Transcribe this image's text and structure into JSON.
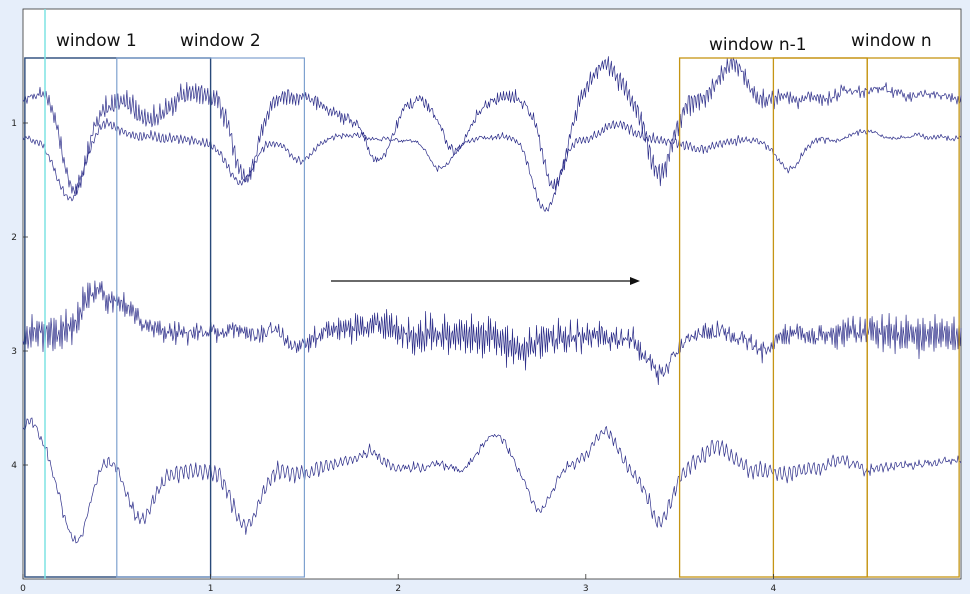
{
  "window_labels": {
    "first": "window 1",
    "second": "window 2",
    "second_last": "window n-1",
    "last": "window n"
  },
  "x_ticks": [
    "0",
    "1",
    "2",
    "3",
    "4"
  ],
  "y_ticks": [
    "1",
    "2",
    "3",
    "4"
  ],
  "colors": {
    "signal": "#2e2f8a",
    "window_1": "#29497a",
    "window_2": "#7ea1cf",
    "window_n": "#c59514",
    "cursor": "#7fe3e3",
    "arrow": "#111111"
  }
}
